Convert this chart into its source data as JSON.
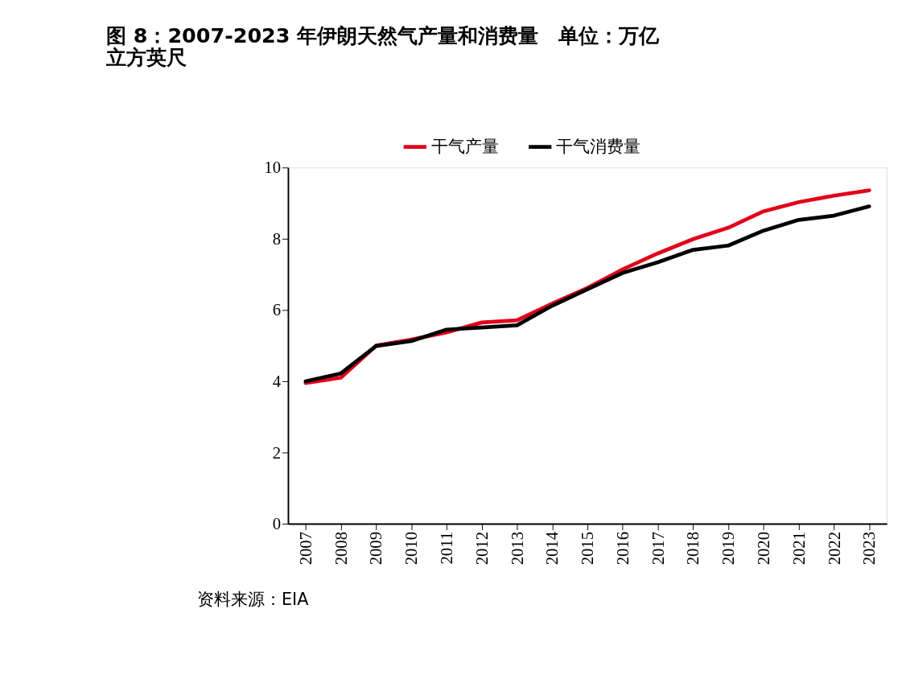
{
  "chart_data": {
    "type": "line",
    "title": "图 8：2007-2023 年伊朗天然气产量和消费量　单位：万亿立方英尺",
    "categories": [
      "2007",
      "2008",
      "2009",
      "2010",
      "2011",
      "2012",
      "2013",
      "2014",
      "2015",
      "2016",
      "2017",
      "2018",
      "2019",
      "2020",
      "2021",
      "2022",
      "2023"
    ],
    "series": [
      {
        "name": "干气产量",
        "color": "#e2001a",
        "values": [
          3.95,
          4.1,
          5.0,
          5.17,
          5.37,
          5.65,
          5.71,
          6.18,
          6.62,
          7.14,
          7.59,
          7.99,
          8.31,
          8.77,
          9.03,
          9.21,
          9.36
        ]
      },
      {
        "name": "干气消费量",
        "color": "#000000",
        "values": [
          4.0,
          4.22,
          4.99,
          5.13,
          5.45,
          5.51,
          5.57,
          6.12,
          6.58,
          7.04,
          7.34,
          7.69,
          7.81,
          8.23,
          8.53,
          8.65,
          8.91
        ]
      }
    ],
    "ylim": [
      0,
      10
    ],
    "yticks": [
      0,
      2,
      4,
      6,
      8,
      10
    ],
    "grid": false,
    "legend": "top",
    "marker": "none",
    "line_style": "solid",
    "annotations": [
      "资料来源：EIA"
    ]
  }
}
